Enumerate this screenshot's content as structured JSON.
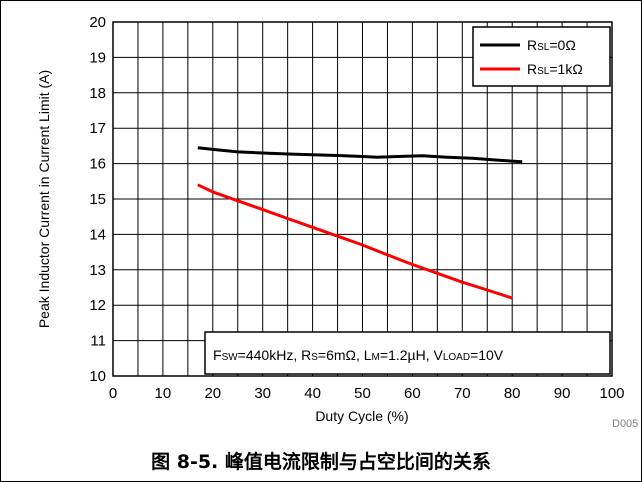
{
  "chart_data": {
    "type": "line",
    "xlabel": "Duty Cycle (%)",
    "ylabel": "Peak Inductor Current in Current Limit (A)",
    "xlim": [
      0,
      100
    ],
    "ylim": [
      10,
      20
    ],
    "xticks": [
      0,
      10,
      20,
      30,
      40,
      50,
      60,
      70,
      80,
      90,
      100
    ],
    "yticks": [
      10,
      11,
      12,
      13,
      14,
      15,
      16,
      17,
      18,
      19,
      20
    ],
    "minor_x_step": 5,
    "grid": true,
    "legend_position": "top-right",
    "series": [
      {
        "name_parts": [
          [
            "R",
            ""
          ],
          [
            "SL",
            "sub"
          ],
          [
            "=0Ω",
            ""
          ]
        ],
        "color": "#000000",
        "x": [
          17,
          20,
          25,
          30,
          35,
          40,
          45,
          50,
          53,
          57,
          62,
          67,
          72,
          77,
          82
        ],
        "y": [
          16.45,
          16.4,
          16.33,
          16.3,
          16.27,
          16.25,
          16.23,
          16.2,
          16.18,
          16.2,
          16.22,
          16.18,
          16.15,
          16.1,
          16.05
        ]
      },
      {
        "name_parts": [
          [
            "R",
            ""
          ],
          [
            "SL",
            "sub"
          ],
          [
            "=1kΩ",
            ""
          ]
        ],
        "color": "#ff0000",
        "x": [
          17,
          20,
          25,
          30,
          35,
          40,
          45,
          50,
          55,
          60,
          65,
          70,
          75,
          80
        ],
        "y": [
          15.4,
          15.2,
          14.95,
          14.7,
          14.45,
          14.2,
          13.95,
          13.7,
          13.42,
          13.15,
          12.9,
          12.65,
          12.43,
          12.2
        ]
      }
    ],
    "annotation_parts": [
      [
        "F",
        ""
      ],
      [
        "SW",
        "sub"
      ],
      [
        "=440kHz, R",
        ""
      ],
      [
        "S",
        "sub"
      ],
      [
        "=6mΩ, L",
        ""
      ],
      [
        "M",
        "sub"
      ],
      [
        "=1.2µH, V",
        ""
      ],
      [
        "LOAD",
        "sub"
      ],
      [
        "=10V",
        ""
      ]
    ],
    "figure_code": "D005"
  },
  "caption": "图 8-5. 峰值电流限制与占空比间的关系"
}
